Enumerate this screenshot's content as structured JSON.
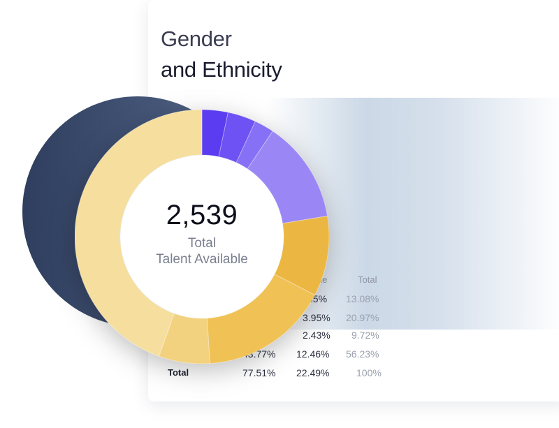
{
  "card": {
    "title_line1": "Gender",
    "title_line2": "and Ethnicity"
  },
  "table": {
    "headers": {
      "col2": "ale",
      "col3": "Total"
    },
    "rows": [
      {
        "label": "",
        "female": "",
        "male": "65%",
        "total": "13.08%"
      },
      {
        "label": "",
        "female": "",
        "male": "3.95%",
        "total": "20.97%"
      },
      {
        "label": "",
        "female": "",
        "male": "2.43%",
        "total": "9.72%"
      },
      {
        "label": "",
        "female": "43.77%",
        "male": "12.46%",
        "total": "56.23%"
      },
      {
        "label": "Total",
        "female": "77.51%",
        "male": "22.49%",
        "total": "100%"
      }
    ]
  },
  "summary": {
    "count": "2,539",
    "label_line1": "Total",
    "label_line2": "Talent Available"
  },
  "chart_data": {
    "type": "pie",
    "center_value": "2,539",
    "center_label": "Total Talent Available",
    "slices": [
      {
        "value": 3.3,
        "color": "#5b3cf0"
      },
      {
        "value": 3.6,
        "color": "#6e52f3"
      },
      {
        "value": 2.5,
        "color": "#8670f5"
      },
      {
        "value": 13.0,
        "color": "#9a86f5"
      },
      {
        "value": 10.2,
        "color": "#ebb742"
      },
      {
        "value": 16.4,
        "color": "#f0c255"
      },
      {
        "value": 6.5,
        "color": "#f3d27f"
      },
      {
        "value": 44.5,
        "color": "#f6df9e"
      }
    ]
  }
}
